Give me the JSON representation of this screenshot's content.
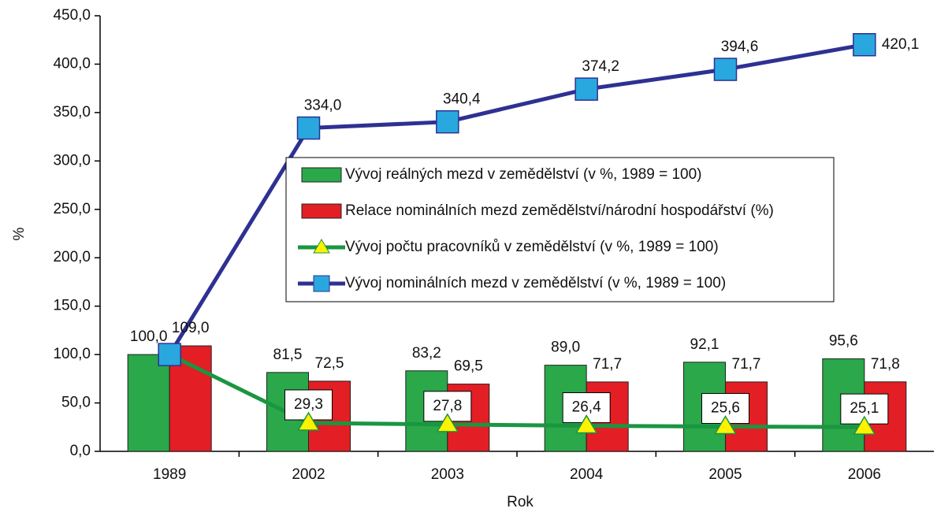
{
  "chart_data": {
    "type": "bar_line",
    "x_label": "Rok",
    "y_label": "%",
    "categories": [
      "1989",
      "2002",
      "2003",
      "2004",
      "2005",
      "2006"
    ],
    "ylim": [
      0,
      450
    ],
    "yticks": [
      {
        "value": 0,
        "label": "0,0"
      },
      {
        "value": 50,
        "label": "50,0"
      },
      {
        "value": 100,
        "label": "100,0"
      },
      {
        "value": 150,
        "label": "150,0"
      },
      {
        "value": 200,
        "label": "200,0"
      },
      {
        "value": 250,
        "label": "250,0"
      },
      {
        "value": 300,
        "label": "300,0"
      },
      {
        "value": 350,
        "label": "350,0"
      },
      {
        "value": 400,
        "label": "400,0"
      },
      {
        "value": 450,
        "label": "450,0"
      }
    ],
    "legend": "center",
    "series": [
      {
        "name": "Vývoj reálných mezd v zemědělství  (v %, 1989 = 100)",
        "kind": "bar",
        "color": "#2aa84a",
        "values": [
          100.0,
          81.5,
          83.2,
          89.0,
          92.1,
          95.6
        ],
        "value_labels": [
          "100,0",
          "81,5",
          "83,2",
          "89,0",
          "92,1",
          "95,6"
        ]
      },
      {
        "name": "Relace nominálních mezd  zemědělství/národní hospodářství  (%)",
        "kind": "bar",
        "color": "#e31e24",
        "values": [
          109.0,
          72.5,
          69.5,
          71.7,
          71.7,
          71.8
        ],
        "value_labels": [
          "109,0",
          "72,5",
          "69,5",
          "71,7",
          "71,7",
          "71,8"
        ]
      },
      {
        "name": "Vývoj počtu pracovníků v zemědělství  (v %, 1989 = 100)",
        "kind": "line",
        "marker": "triangle",
        "color": "#1a9641",
        "marker_color": "#fff200",
        "values": [
          100.0,
          29.3,
          27.8,
          26.4,
          25.6,
          25.1
        ],
        "value_labels": [
          null,
          "29,3",
          "27,8",
          "26,4",
          "25,6",
          "25,1"
        ]
      },
      {
        "name": "Vývoj nominálních mezd v zemědělství  (v %, 1989 = 100)",
        "kind": "line",
        "marker": "square",
        "color": "#2e3192",
        "marker_color": "#29a8e0",
        "values": [
          100.0,
          334.0,
          340.4,
          374.2,
          394.6,
          420.1
        ],
        "value_labels": [
          null,
          "334,0",
          "340,4",
          "374,2",
          "394,6",
          "420,1"
        ]
      }
    ]
  }
}
